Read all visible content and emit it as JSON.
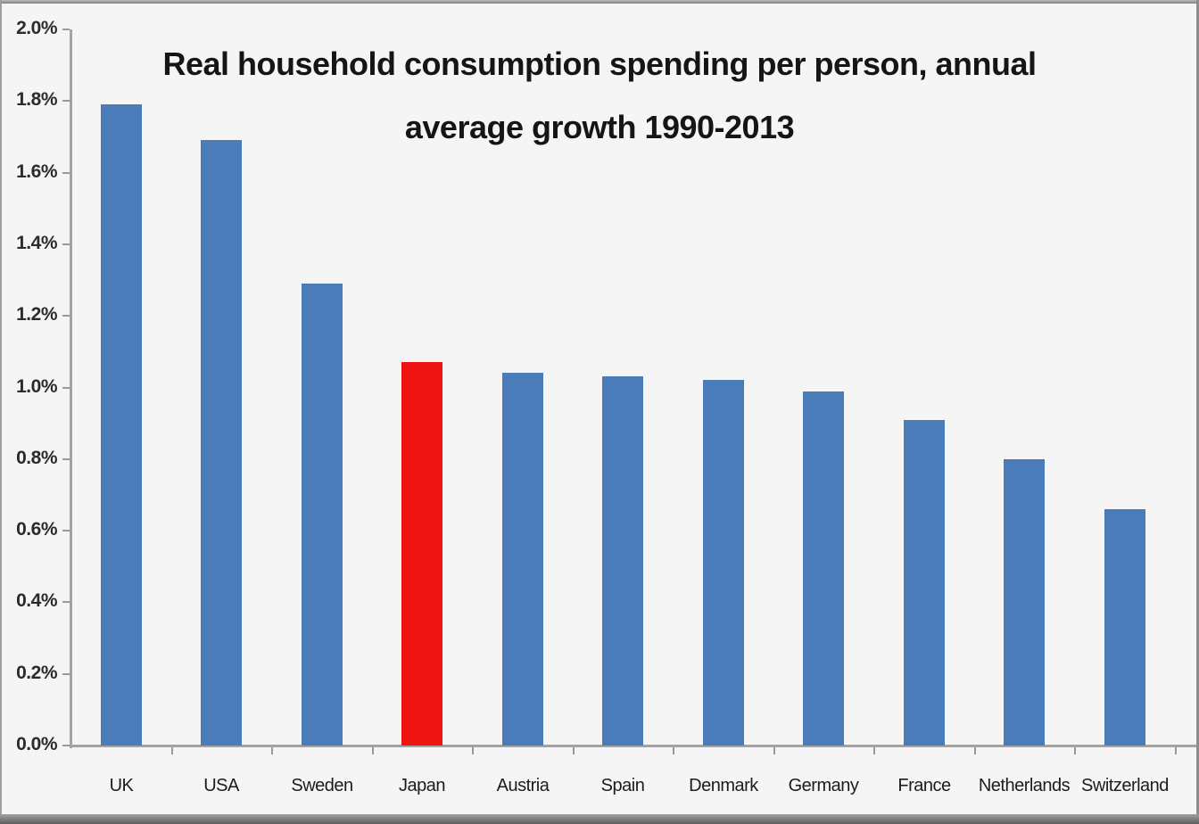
{
  "chart_data": {
    "type": "bar",
    "title": "Real household consumption spending per person, annual average growth 1990-2013",
    "title_lines": [
      "Real household consumption spending per person, annual",
      "average growth 1990-2013"
    ],
    "categories": [
      "UK",
      "USA",
      "Sweden",
      "Japan",
      "Austria",
      "Spain",
      "Denmark",
      "Germany",
      "France",
      "Netherlands",
      "Switzerland"
    ],
    "values": [
      1.79,
      1.69,
      1.29,
      1.07,
      1.04,
      1.03,
      1.02,
      0.99,
      0.91,
      0.8,
      0.66
    ],
    "unit": "%",
    "highlight_category": "Japan",
    "colors": {
      "bar": "#4a7cba",
      "highlight": "#ee1411",
      "axis": "#a3a3a3",
      "text": "#1c1c1c",
      "background": "#f6f5f6"
    },
    "ylim": [
      0,
      2.0
    ],
    "ytick_step": 0.2,
    "ytick_labels": [
      "0.0%",
      "0.2%",
      "0.4%",
      "0.6%",
      "0.8%",
      "1.0%",
      "1.2%",
      "1.4%",
      "1.6%",
      "1.8%",
      "2.0%"
    ],
    "xlabel": "",
    "ylabel": "",
    "grid": false,
    "legend": "none"
  }
}
